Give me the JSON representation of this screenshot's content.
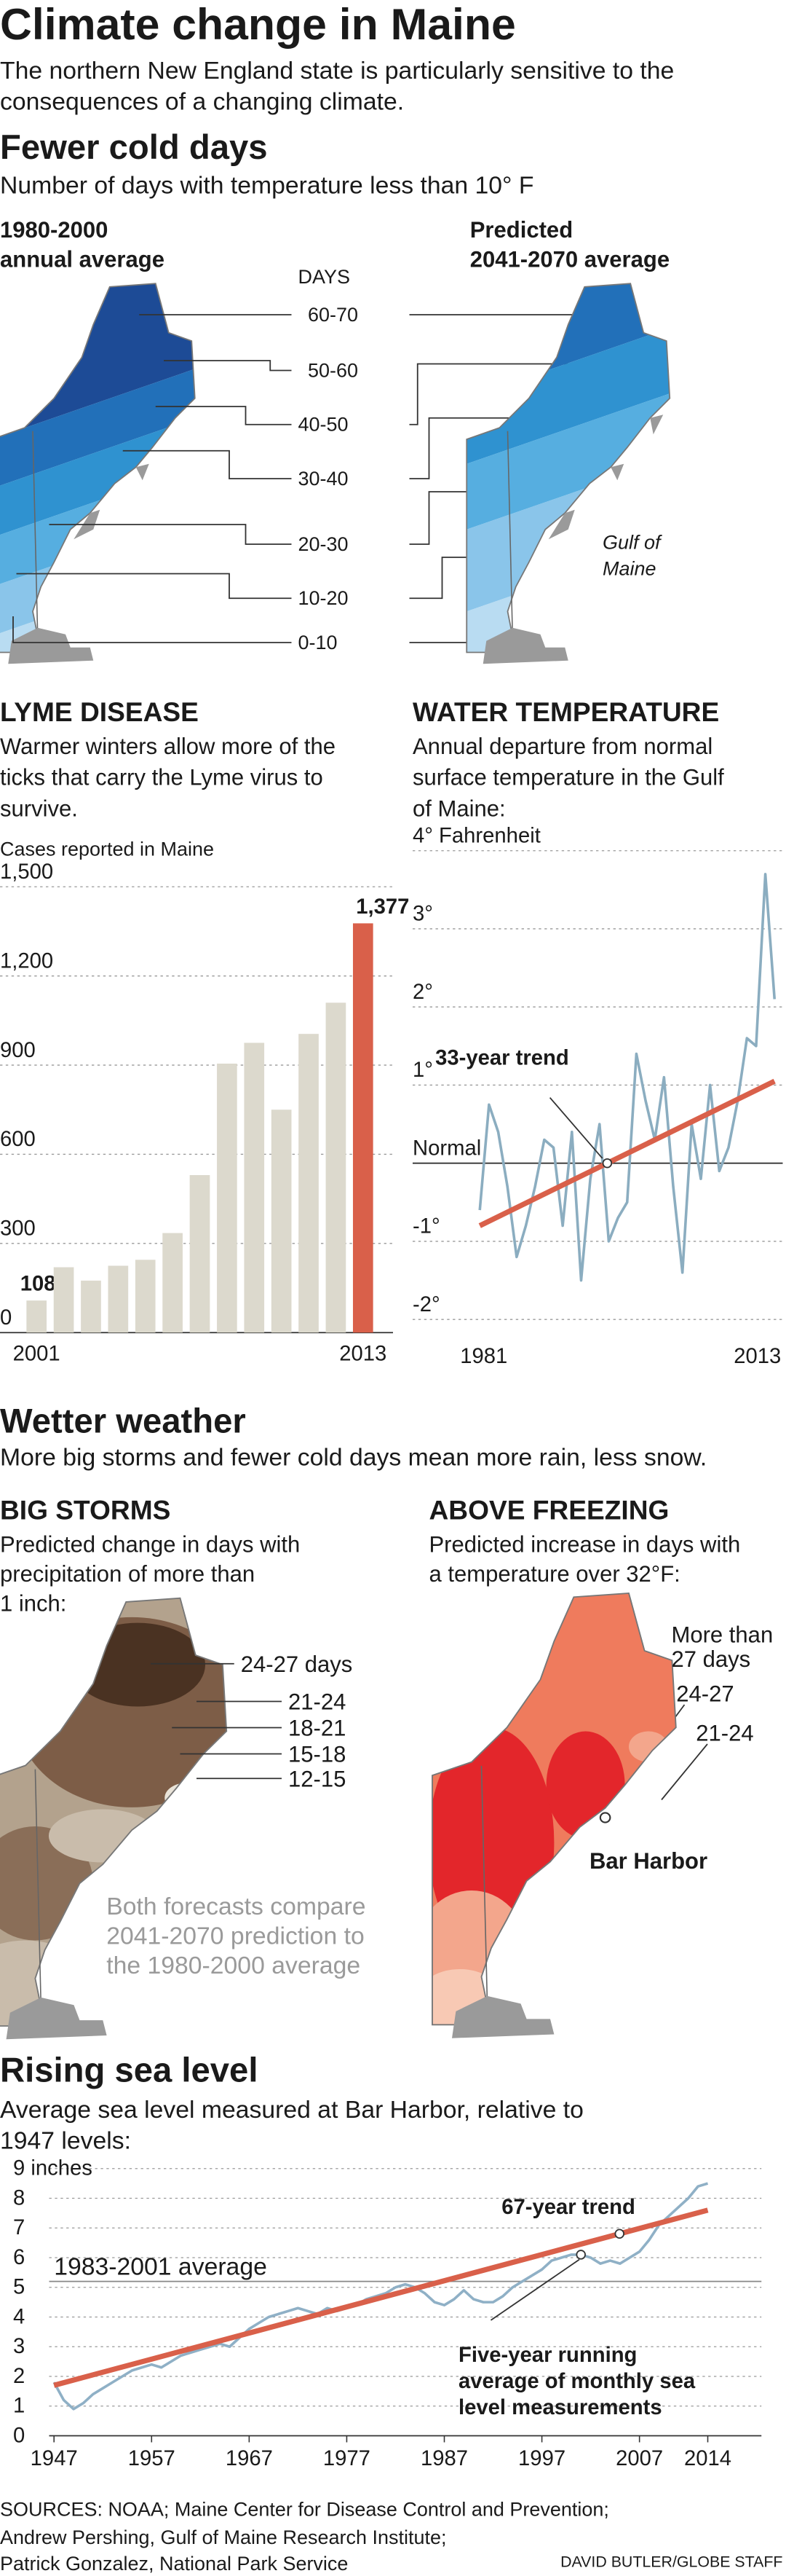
{
  "header": {
    "title": "Climate change in Maine",
    "subtitle": [
      "The northern New England state is particularly sensitive to the",
      "consequences of a changing climate."
    ]
  },
  "cold_days": {
    "title": "Fewer cold days",
    "subtitle": "Number of days with temperature less than 10° F",
    "left_map": [
      "1980-2000",
      "annual average"
    ],
    "right_map": [
      "Predicted",
      "2041-2070 average"
    ],
    "legend_title": "DAYS",
    "bands": [
      "60-70",
      "50-60",
      "40-50",
      "30-40",
      "20-30",
      "10-20",
      "0-10"
    ],
    "place": [
      "Gulf of",
      "Maine"
    ]
  },
  "chart_data": [
    {
      "type": "bar",
      "title": "LYME DISEASE",
      "subtitle": [
        "Warmer winters allow more of the",
        "ticks that carry the Lyme virus to",
        "survive."
      ],
      "y_label": "Cases reported in Maine",
      "categories": [
        "2001",
        null,
        null,
        null,
        null,
        null,
        null,
        null,
        null,
        null,
        null,
        null,
        "2013"
      ],
      "values": [
        108,
        220,
        175,
        225,
        245,
        335,
        530,
        905,
        975,
        750,
        1005,
        1110,
        1377
      ],
      "value_labels": [
        "108",
        null,
        null,
        null,
        null,
        null,
        null,
        null,
        null,
        null,
        null,
        null,
        "1,377"
      ],
      "colors": [
        "#dcd9cd",
        "#dcd9cd",
        "#dcd9cd",
        "#dcd9cd",
        "#dcd9cd",
        "#dcd9cd",
        "#dcd9cd",
        "#dcd9cd",
        "#dcd9cd",
        "#dcd9cd",
        "#dcd9cd",
        "#dcd9cd",
        "#d9604a"
      ],
      "ylim": [
        0,
        1500
      ],
      "yticks": [
        0,
        300,
        600,
        900,
        {
          "value": 1200,
          "label": "1,200"
        },
        {
          "value": 1500,
          "label": "1,500"
        }
      ],
      "grid": true
    },
    {
      "type": "line",
      "title": "WATER TEMPERATURE",
      "subtitle": [
        "Annual departure from normal",
        "surface temperature in the Gulf",
        "of Maine:"
      ],
      "x": [
        1981,
        1982,
        1983,
        1984,
        1985,
        1986,
        1987,
        1988,
        1989,
        1990,
        1991,
        1992,
        1993,
        1994,
        1995,
        1996,
        1997,
        1998,
        1999,
        2000,
        2001,
        2002,
        2003,
        2004,
        2005,
        2006,
        2007,
        2008,
        2009,
        2010,
        2011,
        2012,
        2013
      ],
      "xlim": [
        1981,
        2013
      ],
      "xticks": [
        1981,
        2013
      ],
      "ylim": [
        -2.2,
        4
      ],
      "yticks": [
        {
          "value": 4,
          "label": "4° Fahrenheit"
        },
        {
          "value": 3,
          "label": "3°"
        },
        {
          "value": 2,
          "label": "2°"
        },
        {
          "value": 1,
          "label": "1°"
        },
        {
          "value": 0,
          "label": "Normal"
        },
        {
          "value": -1,
          "label": "-1°"
        },
        {
          "value": -2,
          "label": "-2°"
        }
      ],
      "grid": true,
      "series": [
        {
          "color": "#8badc0",
          "values": [
            -0.6,
            0.75,
            0.4,
            -0.3,
            -1.2,
            -0.8,
            -0.3,
            0.3,
            0.2,
            -0.8,
            0.4,
            -1.5,
            -0.2,
            0.5,
            -1.0,
            -0.7,
            -0.5,
            1.4,
            0.8,
            0.3,
            1.1,
            -0.3,
            -1.4,
            0.5,
            -0.2,
            1.0,
            -0.1,
            0.2,
            0.8,
            1.6,
            1.5,
            3.7,
            2.1
          ]
        },
        {
          "name": "33-year trend",
          "color": "#d9604a",
          "x": [
            1981,
            2013
          ],
          "values": [
            -0.8,
            1.05
          ]
        }
      ]
    },
    {
      "type": "line",
      "title": "Rising sea level",
      "subtitle": [
        "Average sea level measured at Bar Harbor, relative to",
        "1947 levels:"
      ],
      "x": [
        1947,
        1948,
        1949,
        1950,
        1951,
        1952,
        1953,
        1954,
        1955,
        1956,
        1957,
        1958,
        1959,
        1960,
        1961,
        1962,
        1963,
        1964,
        1965,
        1966,
        1967,
        1968,
        1969,
        1970,
        1971,
        1972,
        1973,
        1974,
        1975,
        1976,
        1977,
        1978,
        1979,
        1980,
        1981,
        1982,
        1983,
        1984,
        1985,
        1986,
        1987,
        1988,
        1989,
        1990,
        1991,
        1992,
        1993,
        1994,
        1995,
        1996,
        1997,
        1998,
        1999,
        2000,
        2001,
        2002,
        2003,
        2004,
        2005,
        2006,
        2007,
        2008,
        2009,
        2010,
        2011,
        2012,
        2013,
        2014
      ],
      "xlim": [
        1946.5,
        2019.5
      ],
      "xticks": [
        1947,
        1957,
        1967,
        1977,
        1987,
        1997,
        2007,
        2014
      ],
      "ylim": [
        0,
        9
      ],
      "yticks": [
        0,
        1,
        2,
        3,
        4,
        5,
        6,
        7,
        8,
        {
          "value": 9,
          "label": "9 inches"
        }
      ],
      "grid": true,
      "reference": {
        "label": "1983-2001 average",
        "value": 5.2
      },
      "series": [
        {
          "name": "Five-year running average of monthly sea level measurements",
          "color": "#8fb0c6",
          "values": [
            1.8,
            1.2,
            0.9,
            1.1,
            1.4,
            1.6,
            1.8,
            2.0,
            2.2,
            2.3,
            2.4,
            2.3,
            2.5,
            2.7,
            2.8,
            2.9,
            3.0,
            3.1,
            3.0,
            3.3,
            3.6,
            3.8,
            4.0,
            4.1,
            4.2,
            4.3,
            4.2,
            4.1,
            4.3,
            4.2,
            4.3,
            4.4,
            4.6,
            4.7,
            4.8,
            5.0,
            5.1,
            5.0,
            4.8,
            4.5,
            4.4,
            4.6,
            4.9,
            4.6,
            4.5,
            4.5,
            4.7,
            5.0,
            5.2,
            5.4,
            5.6,
            5.9,
            6.0,
            6.1,
            6.1,
            6.0,
            5.8,
            5.9,
            5.8,
            6.0,
            6.2,
            6.6,
            7.1,
            7.4,
            7.7,
            8.0,
            8.4,
            8.5
          ]
        },
        {
          "name": "67-year trend",
          "color": "#d9604a",
          "x": [
            1947,
            2014
          ],
          "values": [
            1.7,
            7.6
          ]
        }
      ]
    }
  ],
  "wetter": {
    "title": "Wetter weather",
    "subtitle": "More big storms and fewer cold days mean more rain, less snow.",
    "storms": {
      "title": "BIG STORMS",
      "text": [
        "Predicted change in days with",
        "precipitation of more than",
        "1 inch:"
      ],
      "bands": [
        "24-27 days",
        "21-24",
        "18-21",
        "15-18",
        "12-15"
      ]
    },
    "freezing": {
      "title": "ABOVE FREEZING",
      "text": [
        "Predicted increase in days with",
        "a temperature over 32°F:"
      ],
      "bands": [
        [
          "More than",
          "27 days"
        ],
        "24-27",
        "21-24"
      ],
      "place": "Bar Harbor"
    },
    "note": [
      "Both forecasts compare",
      "2041-2070 prediction to",
      "the 1980-2000 average"
    ]
  },
  "sources": [
    "SOURCES: NOAA; Maine Center for Disease Control and Prevention;",
    "Andrew Pershing,  Gulf of Maine Research Institute;",
    "Patrick Gonzalez, National Park Service"
  ],
  "credit": "DAVID BUTLER/GLOBE STAFF"
}
